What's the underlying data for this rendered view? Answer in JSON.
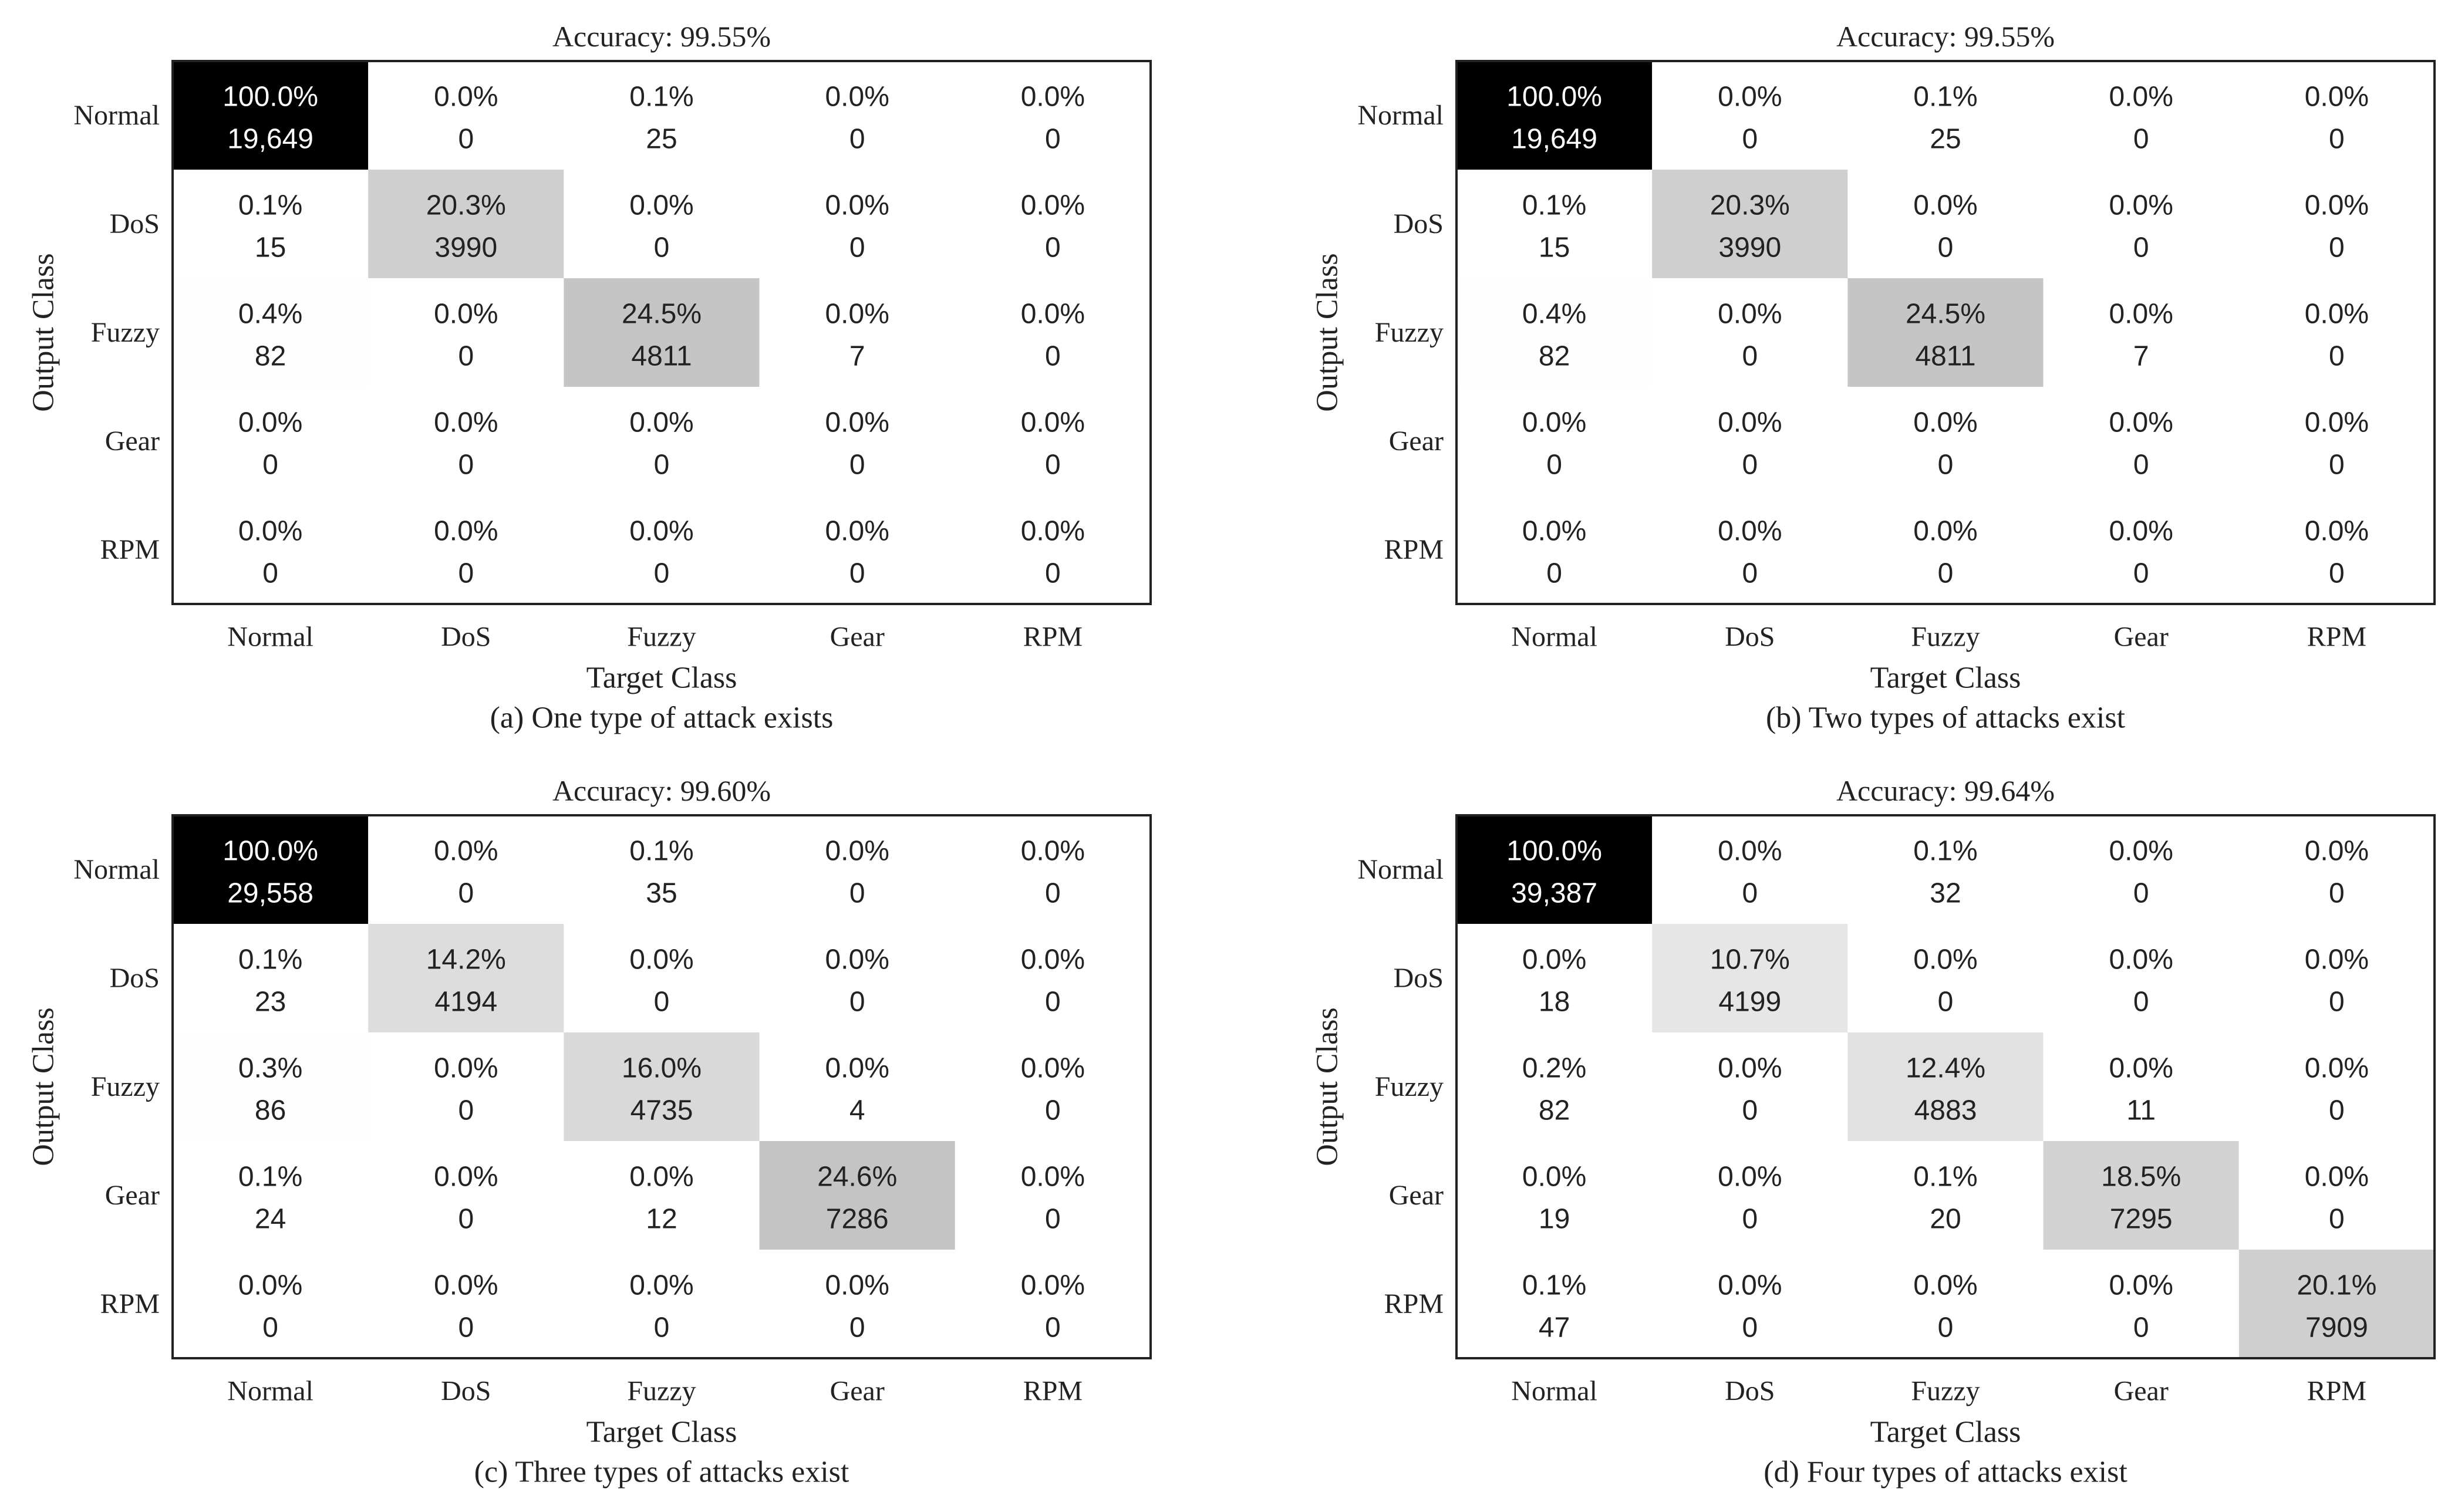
{
  "chart_data": [
    {
      "type": "heatmap",
      "title": "Accuracy: 99.55%",
      "caption": "(a) One type of attack exists",
      "xlabel": "Target Class",
      "ylabel": "Output Class",
      "x_categories": [
        "Normal",
        "DoS",
        "Fuzzy",
        "Gear",
        "RPM"
      ],
      "y_categories": [
        "Normal",
        "DoS",
        "Fuzzy",
        "Gear",
        "RPM"
      ],
      "percentages": [
        [
          "100.0%",
          "0.0%",
          "0.1%",
          "0.0%",
          "0.0%"
        ],
        [
          "0.1%",
          "20.3%",
          "0.0%",
          "0.0%",
          "0.0%"
        ],
        [
          "0.4%",
          "0.0%",
          "24.5%",
          "0.0%",
          "0.0%"
        ],
        [
          "0.0%",
          "0.0%",
          "0.0%",
          "0.0%",
          "0.0%"
        ],
        [
          "0.0%",
          "0.0%",
          "0.0%",
          "0.0%",
          "0.0%"
        ]
      ],
      "counts": [
        [
          "19,649",
          "0",
          "25",
          "0",
          "0"
        ],
        [
          "15",
          "3990",
          "0",
          "0",
          "0"
        ],
        [
          "82",
          "0",
          "4811",
          "7",
          "0"
        ],
        [
          "0",
          "0",
          "0",
          "0",
          "0"
        ],
        [
          "0",
          "0",
          "0",
          "0",
          "0"
        ]
      ],
      "shade_values": [
        [
          100.0,
          0.0,
          0.1,
          0.0,
          0.0
        ],
        [
          0.1,
          20.3,
          0.0,
          0.0,
          0.0
        ],
        [
          0.4,
          0.0,
          24.5,
          0.0,
          0.0
        ],
        [
          0.0,
          0.0,
          0.0,
          0.0,
          0.0
        ],
        [
          0.0,
          0.0,
          0.0,
          0.0,
          0.0
        ]
      ]
    },
    {
      "type": "heatmap",
      "title": "Accuracy: 99.55%",
      "caption": "(b) Two types of attacks exist",
      "xlabel": "Target Class",
      "ylabel": "Output Class",
      "x_categories": [
        "Normal",
        "DoS",
        "Fuzzy",
        "Gear",
        "RPM"
      ],
      "y_categories": [
        "Normal",
        "DoS",
        "Fuzzy",
        "Gear",
        "RPM"
      ],
      "percentages": [
        [
          "100.0%",
          "0.0%",
          "0.1%",
          "0.0%",
          "0.0%"
        ],
        [
          "0.1%",
          "20.3%",
          "0.0%",
          "0.0%",
          "0.0%"
        ],
        [
          "0.4%",
          "0.0%",
          "24.5%",
          "0.0%",
          "0.0%"
        ],
        [
          "0.0%",
          "0.0%",
          "0.0%",
          "0.0%",
          "0.0%"
        ],
        [
          "0.0%",
          "0.0%",
          "0.0%",
          "0.0%",
          "0.0%"
        ]
      ],
      "counts": [
        [
          "19,649",
          "0",
          "25",
          "0",
          "0"
        ],
        [
          "15",
          "3990",
          "0",
          "0",
          "0"
        ],
        [
          "82",
          "0",
          "4811",
          "7",
          "0"
        ],
        [
          "0",
          "0",
          "0",
          "0",
          "0"
        ],
        [
          "0",
          "0",
          "0",
          "0",
          "0"
        ]
      ],
      "shade_values": [
        [
          100.0,
          0.0,
          0.1,
          0.0,
          0.0
        ],
        [
          0.1,
          20.3,
          0.0,
          0.0,
          0.0
        ],
        [
          0.4,
          0.0,
          24.5,
          0.0,
          0.0
        ],
        [
          0.0,
          0.0,
          0.0,
          0.0,
          0.0
        ],
        [
          0.0,
          0.0,
          0.0,
          0.0,
          0.0
        ]
      ]
    },
    {
      "type": "heatmap",
      "title": "Accuracy: 99.60%",
      "caption": "(c) Three types of attacks exist",
      "xlabel": "Target Class",
      "ylabel": "Output Class",
      "x_categories": [
        "Normal",
        "DoS",
        "Fuzzy",
        "Gear",
        "RPM"
      ],
      "y_categories": [
        "Normal",
        "DoS",
        "Fuzzy",
        "Gear",
        "RPM"
      ],
      "percentages": [
        [
          "100.0%",
          "0.0%",
          "0.1%",
          "0.0%",
          "0.0%"
        ],
        [
          "0.1%",
          "14.2%",
          "0.0%",
          "0.0%",
          "0.0%"
        ],
        [
          "0.3%",
          "0.0%",
          "16.0%",
          "0.0%",
          "0.0%"
        ],
        [
          "0.1%",
          "0.0%",
          "0.0%",
          "24.6%",
          "0.0%"
        ],
        [
          "0.0%",
          "0.0%",
          "0.0%",
          "0.0%",
          "0.0%"
        ]
      ],
      "counts": [
        [
          "29,558",
          "0",
          "35",
          "0",
          "0"
        ],
        [
          "23",
          "4194",
          "0",
          "0",
          "0"
        ],
        [
          "86",
          "0",
          "4735",
          "4",
          "0"
        ],
        [
          "24",
          "0",
          "12",
          "7286",
          "0"
        ],
        [
          "0",
          "0",
          "0",
          "0",
          "0"
        ]
      ],
      "shade_values": [
        [
          100.0,
          0.0,
          0.1,
          0.0,
          0.0
        ],
        [
          0.1,
          14.2,
          0.0,
          0.0,
          0.0
        ],
        [
          0.3,
          0.0,
          16.0,
          0.0,
          0.0
        ],
        [
          0.1,
          0.0,
          0.0,
          24.6,
          0.0
        ],
        [
          0.0,
          0.0,
          0.0,
          0.0,
          0.0
        ]
      ]
    },
    {
      "type": "heatmap",
      "title": "Accuracy: 99.64%",
      "caption": "(d) Four types of attacks exist",
      "xlabel": "Target Class",
      "ylabel": "Output Class",
      "x_categories": [
        "Normal",
        "DoS",
        "Fuzzy",
        "Gear",
        "RPM"
      ],
      "y_categories": [
        "Normal",
        "DoS",
        "Fuzzy",
        "Gear",
        "RPM"
      ],
      "percentages": [
        [
          "100.0%",
          "0.0%",
          "0.1%",
          "0.0%",
          "0.0%"
        ],
        [
          "0.0%",
          "10.7%",
          "0.0%",
          "0.0%",
          "0.0%"
        ],
        [
          "0.2%",
          "0.0%",
          "12.4%",
          "0.0%",
          "0.0%"
        ],
        [
          "0.0%",
          "0.0%",
          "0.1%",
          "18.5%",
          "0.0%"
        ],
        [
          "0.1%",
          "0.0%",
          "0.0%",
          "0.0%",
          "20.1%"
        ]
      ],
      "counts": [
        [
          "39,387",
          "0",
          "32",
          "0",
          "0"
        ],
        [
          "18",
          "4199",
          "0",
          "0",
          "0"
        ],
        [
          "82",
          "0",
          "4883",
          "11",
          "0"
        ],
        [
          "19",
          "0",
          "20",
          "7295",
          "0"
        ],
        [
          "47",
          "0",
          "0",
          "0",
          "7909"
        ]
      ],
      "shade_values": [
        [
          100.0,
          0.0,
          0.1,
          0.0,
          0.0
        ],
        [
          0.0,
          10.7,
          0.0,
          0.0,
          0.0
        ],
        [
          0.2,
          0.0,
          12.4,
          0.0,
          0.0
        ],
        [
          0.0,
          0.0,
          0.1,
          18.5,
          0.0
        ],
        [
          0.1,
          0.0,
          0.0,
          0.0,
          20.1
        ]
      ]
    }
  ]
}
